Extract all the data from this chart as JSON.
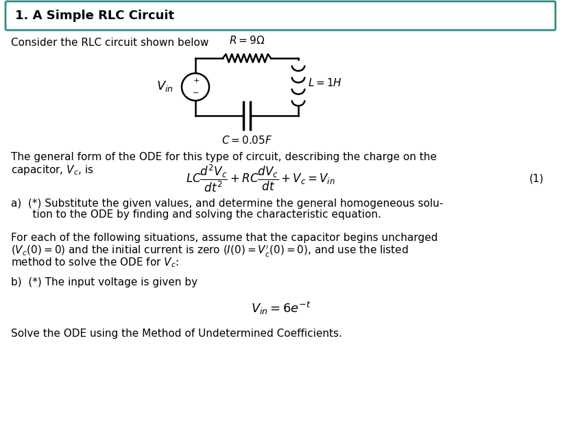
{
  "title": "1. A Simple RLC Circuit",
  "title_fontsize": 13,
  "body_fontsize": 11,
  "background_color": "#ffffff",
  "border_color": "#2e8b8b",
  "text_color": "#000000",
  "line1": "Consider the RLC circuit shown below",
  "equation_label": "(1)",
  "part_a_line1": "a)  (*) Substitute the given values, and determine the general homogeneous solu-",
  "part_a_line2": "    tion to the ODE by finding and solving the characteristic equation.",
  "for_line1": "For each of the following situations, assume that the capacitor begins uncharged",
  "for_line2": "$(V_c(0) = 0)$ and the initial current is zero $(I(0) = V_c'(0) = 0)$, and use the listed",
  "for_line3": "method to solve the ODE for $V_c$:",
  "part_b_line": "b)  (*) The input voltage is given by",
  "part_b_end": "Solve the ODE using the Method of Undetermined Coefficients."
}
